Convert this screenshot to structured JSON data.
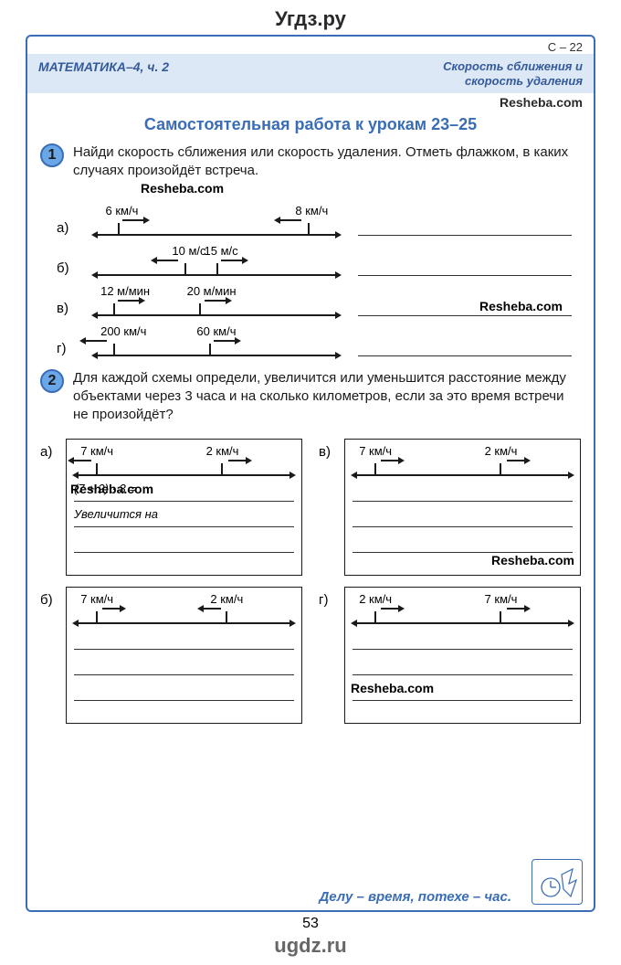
{
  "site_top": "Угдз.ру",
  "site_bottom": "ugdz.ru",
  "page_code": "С – 22",
  "header": {
    "left": "МАТЕМАТИКА–4, ч. 2",
    "right_l1": "Скорость сближения и",
    "right_l2": "скорость удаления"
  },
  "resheba": "Resheba.com",
  "lesson_title": "Самостоятельная работа к урокам 23–25",
  "task1": {
    "num": "1",
    "text": "Найди скорость сближения или скорость удаления. Отметь флажком, в каких случаях произойдёт встреча.",
    "rows": [
      {
        "label": "а)",
        "v1": "6 км/ч",
        "dir1": "right",
        "pos1": 5,
        "v2": "8 км/ч",
        "dir2": "left",
        "pos2": 82
      },
      {
        "label": "б)",
        "v1": "10 м/с",
        "dir1": "left",
        "pos1": 32,
        "v2": "15 м/с",
        "dir2": "right",
        "pos2": 45
      },
      {
        "label": "в)",
        "v1": "12 м/мин",
        "dir1": "right",
        "pos1": 3,
        "v2": "20 м/мин",
        "dir2": "right",
        "pos2": 38
      },
      {
        "label": "г)",
        "v1": "200 км/ч",
        "dir1": "left",
        "pos1": 3,
        "v2": "60 км/ч",
        "dir2": "right",
        "pos2": 42
      }
    ]
  },
  "task2": {
    "num": "2",
    "text": "Для каждой схемы определи, увеличится или уменьшится расстояние между объектами через 3 часа и на сколько километров, если за это время встречи не произойдёт?",
    "cells": [
      {
        "label": "а)",
        "v1": "7 км/ч",
        "dir1": "left",
        "pos1": 3,
        "v2": "2 км/ч",
        "dir2": "right",
        "pos2": 60,
        "line1": "(7 + 2) · 3 =",
        "line2": "Увеличится на"
      },
      {
        "label": "в)",
        "v1": "7 км/ч",
        "dir1": "right",
        "pos1": 3,
        "v2": "2 км/ч",
        "dir2": "right",
        "pos2": 60,
        "line1": "",
        "line2": ""
      },
      {
        "label": "б)",
        "v1": "7 км/ч",
        "dir1": "right",
        "pos1": 3,
        "v2": "2 км/ч",
        "dir2": "left",
        "pos2": 62,
        "line1": "",
        "line2": ""
      },
      {
        "label": "г)",
        "v1": "2 км/ч",
        "dir1": "right",
        "pos1": 3,
        "v2": "7 км/ч",
        "dir2": "right",
        "pos2": 60,
        "line1": "",
        "line2": ""
      }
    ]
  },
  "proverb": "Делу – время, потехе – час.",
  "page_number": "53",
  "colors": {
    "blue": "#3a6db5",
    "band": "#dce8f5",
    "badge_fill": "#6aa7e8"
  }
}
